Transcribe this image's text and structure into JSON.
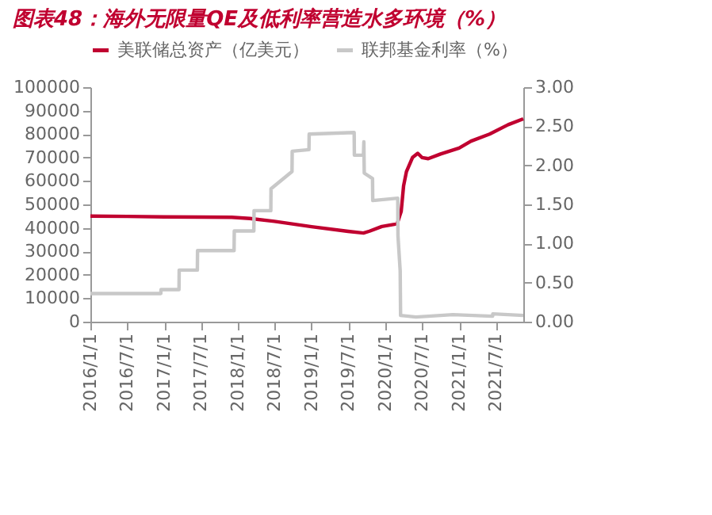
{
  "chart_data": {
    "type": "line",
    "title": "图表48：海外无限量QE及低利率营造水多环境（%）",
    "xlim": [
      "2016-01-01",
      "2021-11-15"
    ],
    "xticks": [
      {
        "value": "2016-01-01",
        "label": "2016/1/1"
      },
      {
        "value": "2016-07-01",
        "label": "2016/7/1"
      },
      {
        "value": "2017-01-01",
        "label": "2017/1/1"
      },
      {
        "value": "2017-07-01",
        "label": "2017/7/1"
      },
      {
        "value": "2018-01-01",
        "label": "2018/1/1"
      },
      {
        "value": "2018-07-01",
        "label": "2018/7/1"
      },
      {
        "value": "2019-01-01",
        "label": "2019/1/1"
      },
      {
        "value": "2019-07-01",
        "label": "2019/7/1"
      },
      {
        "value": "2020-01-01",
        "label": "2020/1/1"
      },
      {
        "value": "2020-07-01",
        "label": "2020/7/1"
      },
      {
        "value": "2021-01-01",
        "label": "2021/1/1"
      },
      {
        "value": "2021-07-01",
        "label": "2021/7/1"
      }
    ],
    "ylim": [
      0,
      100000
    ],
    "yticks": [
      0,
      10000,
      20000,
      30000,
      40000,
      50000,
      60000,
      70000,
      80000,
      90000,
      100000
    ],
    "y2lim": [
      0,
      3
    ],
    "y2ticks": [
      {
        "value": 0,
        "label": "0.00"
      },
      {
        "value": 0.5,
        "label": "0.50"
      },
      {
        "value": 1,
        "label": "1.00"
      },
      {
        "value": 1.5,
        "label": "1.50"
      },
      {
        "value": 2,
        "label": "2.00"
      },
      {
        "value": 2.5,
        "label": "2.50"
      },
      {
        "value": 3,
        "label": "3.00"
      }
    ],
    "grid": false,
    "legend": "top",
    "line_style": "solid",
    "series": [
      {
        "name": "美联储总资产（亿美元）",
        "color": "#c00030",
        "x": [
          "2016-01-01",
          "2016-07-01",
          "2017-01-01",
          "2017-07-01",
          "2017-12-01",
          "2018-03-01",
          "2018-07-01",
          "2019-01-01",
          "2019-07-01",
          "2019-09-15",
          "2019-10-15",
          "2019-12-15",
          "2020-02-15",
          "2020-03-01",
          "2020-03-20",
          "2020-04-01",
          "2020-04-15",
          "2020-05-15",
          "2020-06-10",
          "2020-07-01",
          "2020-08-01",
          "2020-10-01",
          "2021-01-01",
          "2021-03-01",
          "2021-06-01",
          "2021-09-01",
          "2021-11-15"
        ],
        "values": [
          45000,
          44900,
          44700,
          44600,
          44500,
          44000,
          42800,
          40500,
          38500,
          37800,
          38600,
          40600,
          41500,
          42000,
          47000,
          58000,
          64000,
          70000,
          71800,
          70000,
          69500,
          71500,
          74000,
          77000,
          80000,
          84000,
          86500
        ]
      },
      {
        "name": "联邦基金利率（%）",
        "color": "#c8c8c8",
        "axis": "y2",
        "x": [
          "2016-01-01",
          "2016-12-15",
          "2016-12-16",
          "2017-03-15",
          "2017-03-16",
          "2017-06-14",
          "2017-06-15",
          "2017-12-13",
          "2017-12-14",
          "2018-03-21",
          "2018-03-22",
          "2018-06-13",
          "2018-06-14",
          "2018-09-26",
          "2018-09-27",
          "2018-12-19",
          "2018-12-20",
          "2019-07-31",
          "2019-08-01",
          "2019-09-15",
          "2019-09-17",
          "2019-09-19",
          "2019-10-30",
          "2019-10-31",
          "2020-03-03",
          "2020-03-04",
          "2020-03-15",
          "2020-03-17",
          "2020-06-01",
          "2020-12-01",
          "2021-06-16",
          "2021-06-17",
          "2021-11-15"
        ],
        "values": [
          0.36,
          0.36,
          0.41,
          0.41,
          0.66,
          0.66,
          0.91,
          0.91,
          1.16,
          1.16,
          1.42,
          1.42,
          1.7,
          1.92,
          2.18,
          2.2,
          2.4,
          2.42,
          2.13,
          2.13,
          2.3,
          1.9,
          1.83,
          1.55,
          1.58,
          1.1,
          0.65,
          0.08,
          0.06,
          0.09,
          0.07,
          0.1,
          0.08
        ]
      }
    ]
  }
}
